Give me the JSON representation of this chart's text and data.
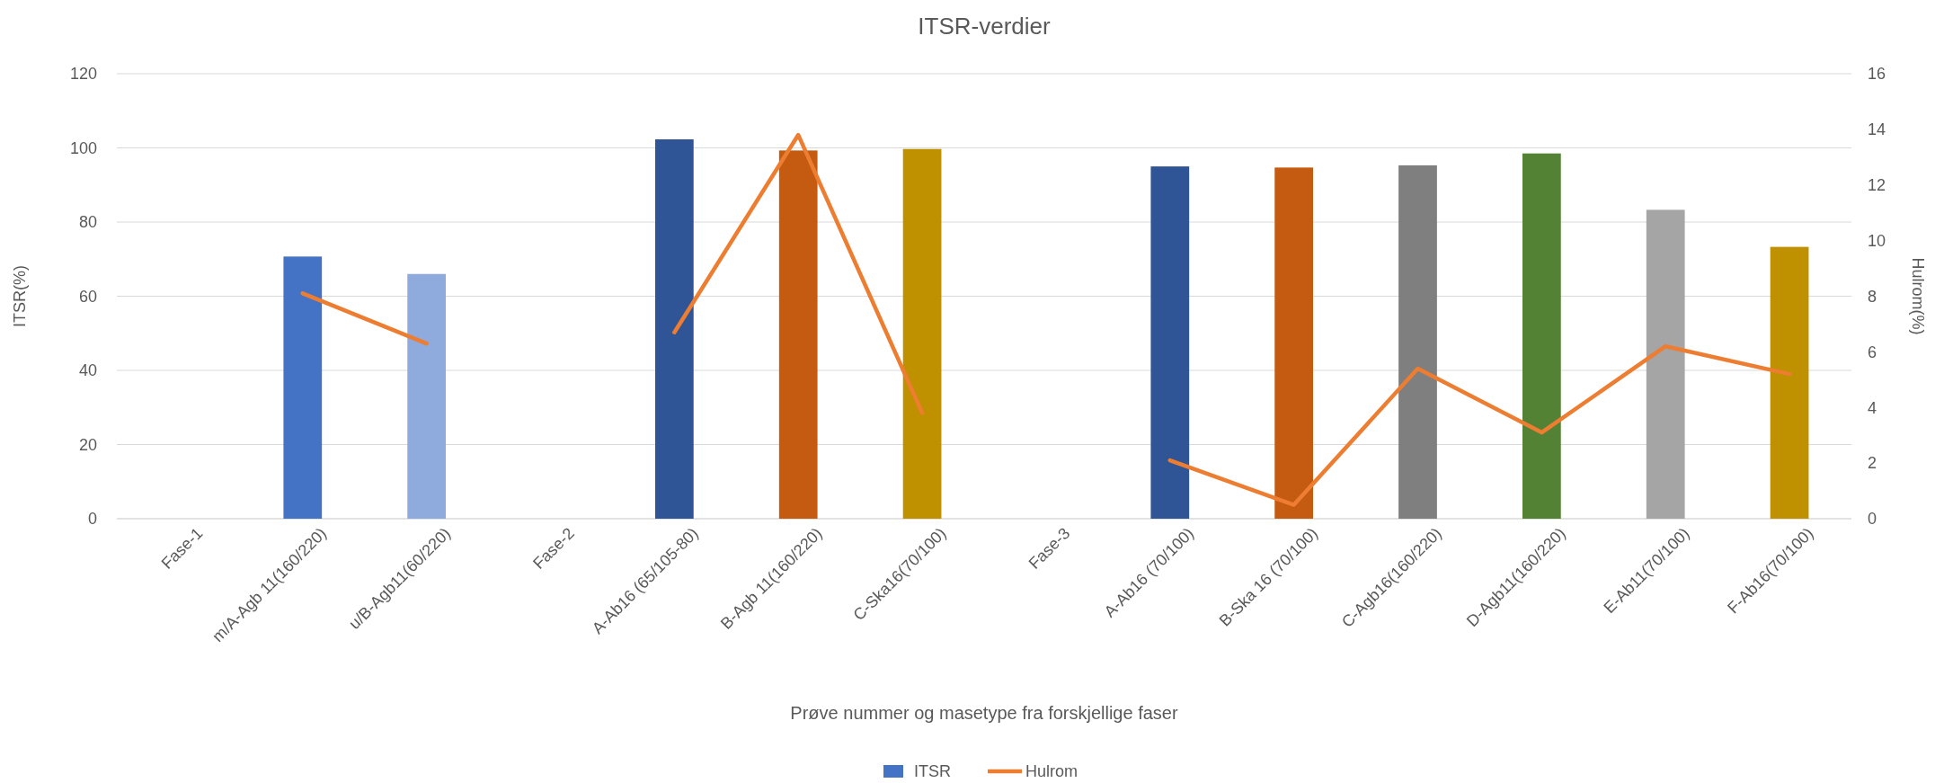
{
  "chart_data": {
    "type": "bar",
    "title": "ITSR-verdier",
    "xlabel": "Prøve nummer og masetype fra forskjellige faser",
    "ylabel": "ITSR(%)",
    "y2label": "Hulrom(%)",
    "categories": [
      "Fase-1",
      "m/A-Agb 11(160/220)",
      "u/B-Agb11(60/220)",
      "Fase-2",
      "A-Ab16 (65/105-80)",
      "B-Agb 11(160/220)",
      "C-Ska16(70/100)",
      "Fase-3",
      "A-Ab16 (70/100)",
      "B-Ska 16 (70/100)",
      "C-Agb16(160/220)",
      "D-Agb11(160/220)",
      "E-Ab11(70/100)",
      "F-Ab16(70/100)"
    ],
    "series": [
      {
        "name": "ITSR",
        "color": "#4472c4",
        "colors": [
          null,
          "#4472c4",
          "#8faadc",
          null,
          "#2f5597",
          "#c55a11",
          "#bf9000",
          null,
          "#2f5597",
          "#c55a11",
          "#7f7f7f",
          "#548235",
          "#a5a5a5",
          "#bf9000"
        ],
        "values": [
          null,
          70.7,
          66,
          null,
          102.3,
          99.3,
          99.7,
          null,
          95,
          94.7,
          95.3,
          98.5,
          83.3,
          73.3
        ]
      },
      {
        "name": "Hulrom",
        "type": "line",
        "axis": "y2",
        "color": "#ed7d31",
        "values": [
          null,
          8.1,
          6.3,
          null,
          6.7,
          13.8,
          3.8,
          null,
          2.1,
          0.5,
          5.4,
          3.1,
          6.2,
          5.2
        ]
      }
    ],
    "ylim": [
      0,
      120
    ],
    "yticks": [
      0,
      20,
      40,
      60,
      80,
      100,
      120
    ],
    "y2lim": [
      0,
      16
    ],
    "y2ticks": [
      0,
      2,
      4,
      6,
      8,
      10,
      12,
      14,
      16
    ],
    "grid": "y",
    "legend": "bottom",
    "marker": "none"
  }
}
